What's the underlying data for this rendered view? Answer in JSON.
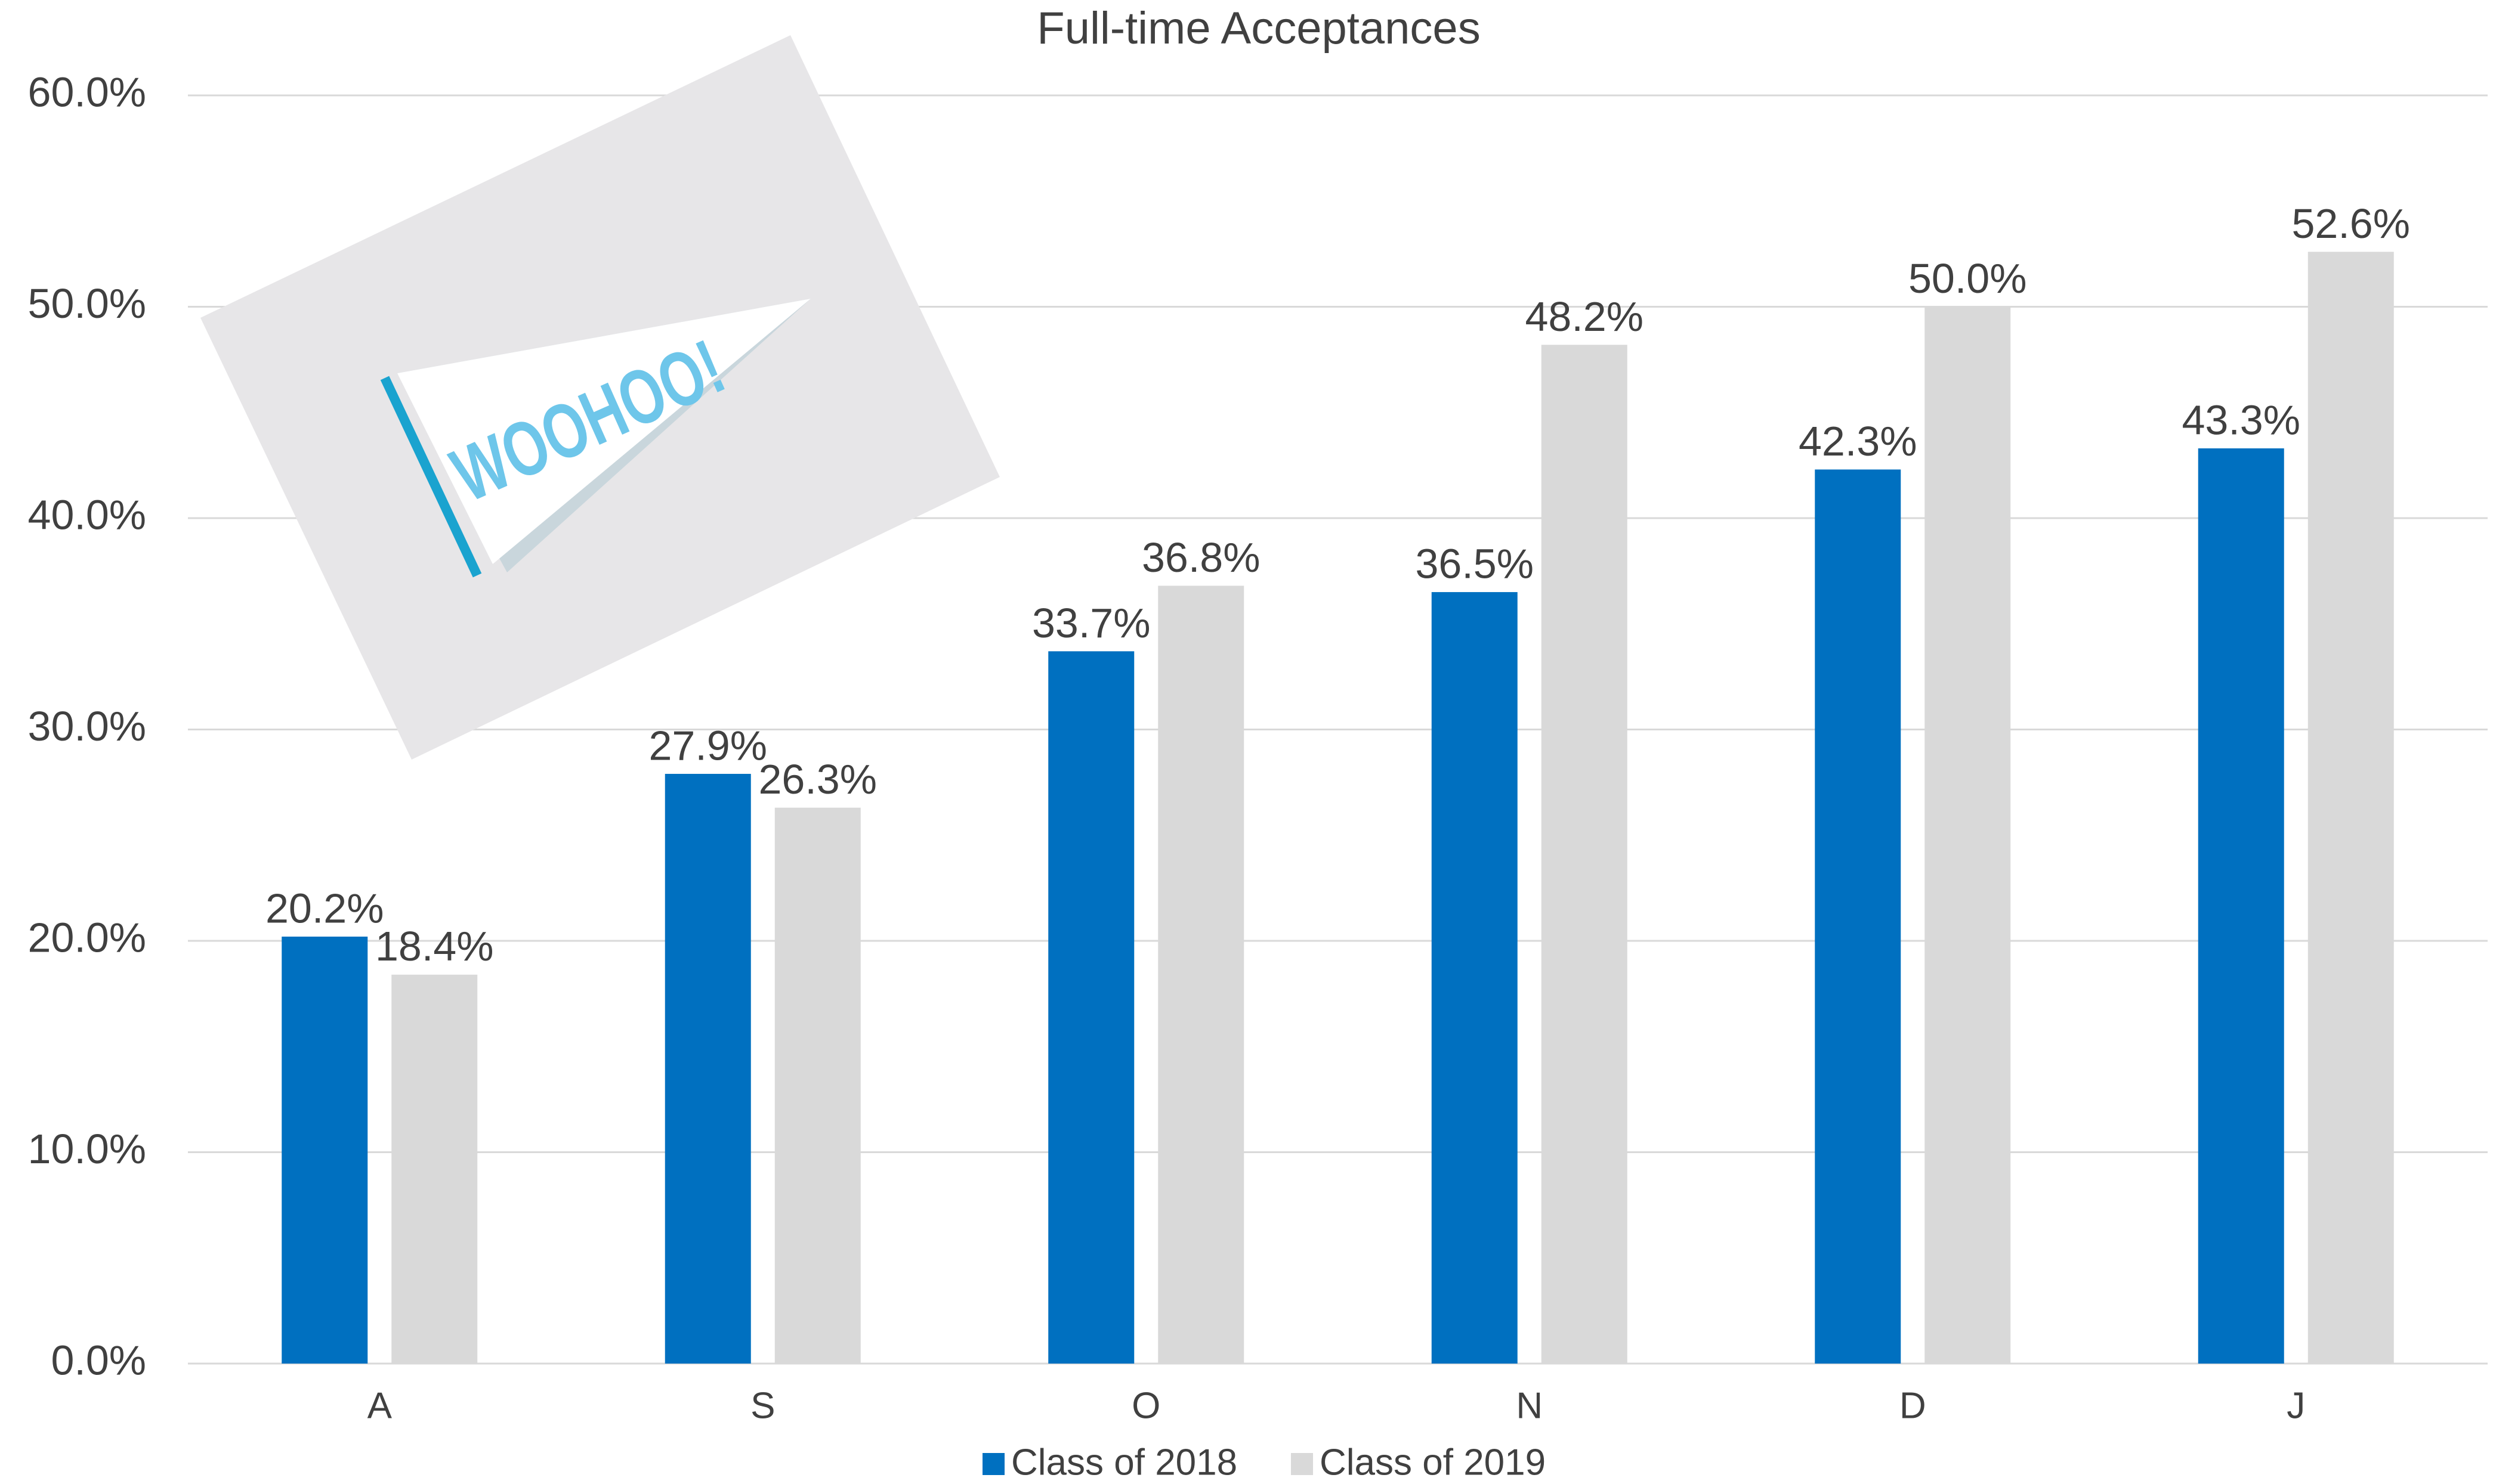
{
  "chart_data": {
    "type": "bar",
    "title": "Full-time Acceptances",
    "categories": [
      "A",
      "S",
      "O",
      "N",
      "D",
      "J"
    ],
    "series": [
      {
        "name": "Class of 2018",
        "color": "#0070c0",
        "values": [
          20.2,
          27.9,
          33.7,
          36.5,
          42.3,
          43.3
        ],
        "value_labels": [
          "20.2%",
          "27.9%",
          "33.7%",
          "36.5%",
          "42.3%",
          "43.3%"
        ]
      },
      {
        "name": "Class of 2019",
        "color": "#d9d9d9",
        "values": [
          18.4,
          26.3,
          36.8,
          48.2,
          50.0,
          52.6
        ],
        "value_labels": [
          "18.4%",
          "26.3%",
          "36.8%",
          "48.2%",
          "50.0%",
          "52.6%"
        ]
      }
    ],
    "ylim": [
      0,
      60
    ],
    "yticks": [
      {
        "value": 0,
        "label": "0.0%"
      },
      {
        "value": 10,
        "label": "10.0%"
      },
      {
        "value": 20,
        "label": "20.0%"
      },
      {
        "value": 30,
        "label": "30.0%"
      },
      {
        "value": 40,
        "label": "40.0%"
      },
      {
        "value": 50,
        "label": "50.0%"
      },
      {
        "value": 60,
        "label": "60.0%"
      }
    ],
    "grid": true,
    "legend": "bottom",
    "annotation": "WOOHOO!"
  }
}
